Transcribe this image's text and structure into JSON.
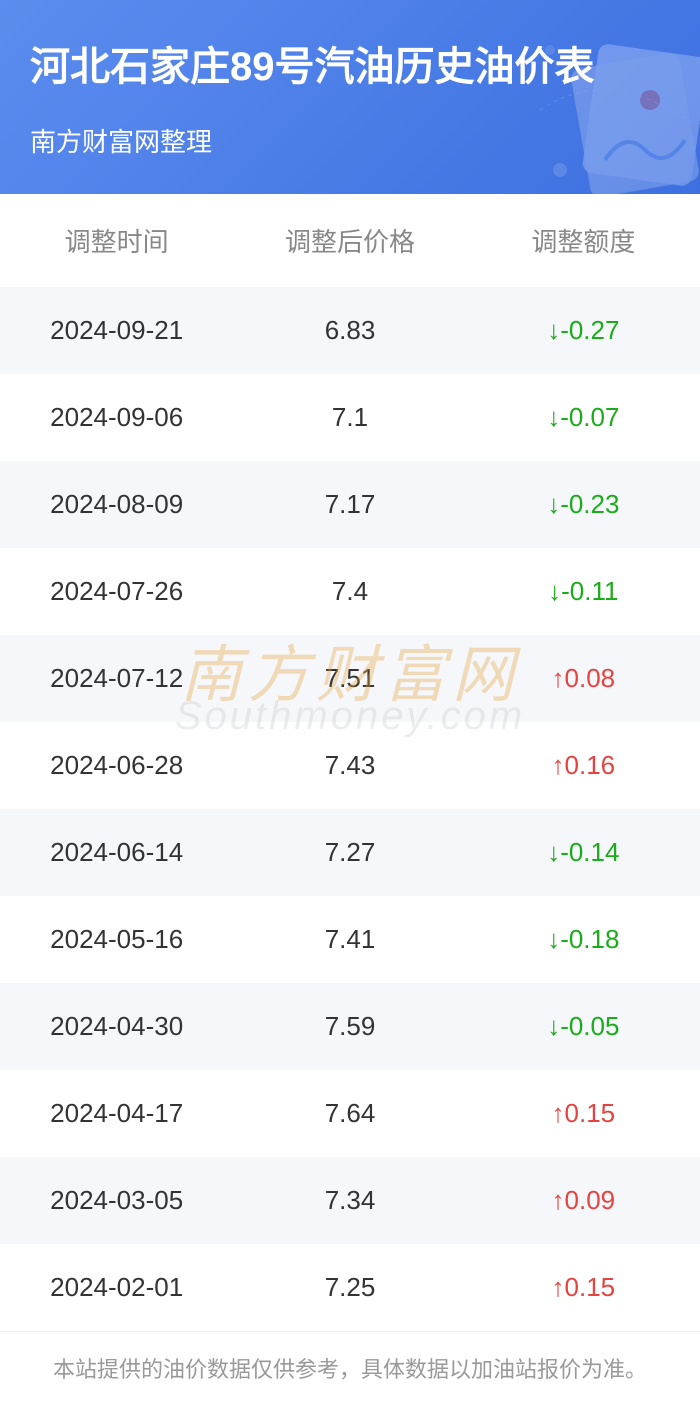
{
  "header": {
    "title": "河北石家庄89号汽油历史油价表",
    "subtitle": "南方财富网整理",
    "bg_gradient_start": "#5b8def",
    "bg_gradient_end": "#3d6fe0"
  },
  "table": {
    "columns": [
      "调整时间",
      "调整后价格",
      "调整额度"
    ],
    "header_color": "#888888",
    "header_fontsize": 26,
    "cell_fontsize": 26,
    "cell_color": "#333333",
    "row_colors": {
      "even": "#f5f7fa",
      "odd": "#ffffff"
    },
    "change_colors": {
      "down": "#1aad19",
      "up": "#e64340"
    },
    "arrows": {
      "down": "↓",
      "up": "↑"
    },
    "rows": [
      {
        "date": "2024-09-21",
        "price": "6.83",
        "change": "-0.27",
        "direction": "down"
      },
      {
        "date": "2024-09-06",
        "price": "7.1",
        "change": "-0.07",
        "direction": "down"
      },
      {
        "date": "2024-08-09",
        "price": "7.17",
        "change": "-0.23",
        "direction": "down"
      },
      {
        "date": "2024-07-26",
        "price": "7.4",
        "change": "-0.11",
        "direction": "down"
      },
      {
        "date": "2024-07-12",
        "price": "7.51",
        "change": "0.08",
        "direction": "up"
      },
      {
        "date": "2024-06-28",
        "price": "7.43",
        "change": "0.16",
        "direction": "up"
      },
      {
        "date": "2024-06-14",
        "price": "7.27",
        "change": "-0.14",
        "direction": "down"
      },
      {
        "date": "2024-05-16",
        "price": "7.41",
        "change": "-0.18",
        "direction": "down"
      },
      {
        "date": "2024-04-30",
        "price": "7.59",
        "change": "-0.05",
        "direction": "down"
      },
      {
        "date": "2024-04-17",
        "price": "7.64",
        "change": "0.15",
        "direction": "up"
      },
      {
        "date": "2024-03-05",
        "price": "7.34",
        "change": "0.09",
        "direction": "up"
      },
      {
        "date": "2024-02-01",
        "price": "7.25",
        "change": "0.15",
        "direction": "up"
      }
    ]
  },
  "watermark": {
    "cn": "南方财富网",
    "en": "Southmoney.com",
    "cn_color": "#e8a43c",
    "en_color": "#cccccc"
  },
  "footer": {
    "text": "本站提供的油价数据仅供参考，具体数据以加油站报价为准。",
    "color": "#999999"
  }
}
